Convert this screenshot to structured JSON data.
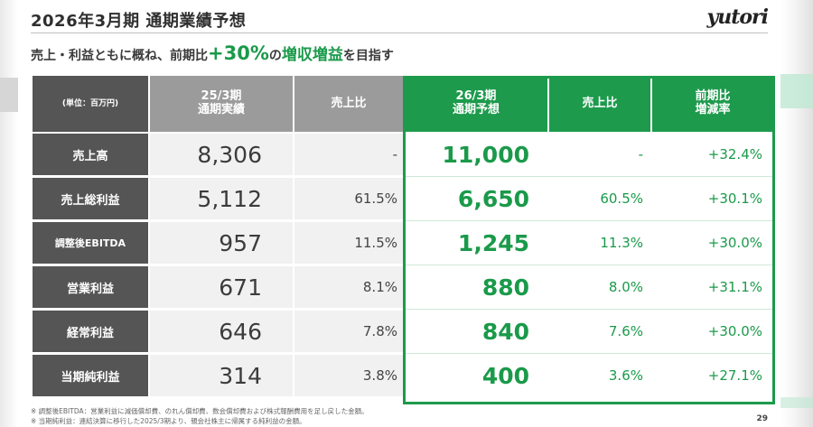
{
  "header": {
    "title": "2026年3月期 通期業績予想",
    "logo": "yutori"
  },
  "subtitle": {
    "pre": "売上・利益ともに概ね、前期比",
    "highlight": "+30%",
    "mid": "の",
    "highlight2": "増収増益",
    "post": "を目指す"
  },
  "table": {
    "headers": {
      "unit": "(単位：百万円)",
      "prev_line1": "25/3期",
      "prev_line2": "通期実績",
      "prev_ratio": "売上比",
      "fc_line1": "26/3期",
      "fc_line2": "通期予想",
      "fc_ratio": "売上比",
      "yoy_line1": "前期比",
      "yoy_line2": "増減率"
    },
    "rows": [
      {
        "label": "売上高",
        "prev": "8,306",
        "prev_ratio": "-",
        "fc": "11,000",
        "fc_ratio": "-",
        "yoy": "+32.4%"
      },
      {
        "label": "売上総利益",
        "prev": "5,112",
        "prev_ratio": "61.5%",
        "fc": "6,650",
        "fc_ratio": "60.5%",
        "yoy": "+30.1%"
      },
      {
        "label": "調整後EBITDA",
        "prev": "957",
        "prev_ratio": "11.5%",
        "fc": "1,245",
        "fc_ratio": "11.3%",
        "yoy": "+30.0%"
      },
      {
        "label": "営業利益",
        "prev": "671",
        "prev_ratio": "8.1%",
        "fc": "880",
        "fc_ratio": "8.0%",
        "yoy": "+31.1%"
      },
      {
        "label": "経常利益",
        "prev": "646",
        "prev_ratio": "7.8%",
        "fc": "840",
        "fc_ratio": "7.6%",
        "yoy": "+30.0%"
      },
      {
        "label": "当期純利益",
        "prev": "314",
        "prev_ratio": "3.8%",
        "fc": "400",
        "fc_ratio": "3.6%",
        "yoy": "+27.1%"
      }
    ]
  },
  "notes": [
    "※ 調整後EBITDA：営業利益に減価償却費、のれん償却費、数会償却費および株式報酬費用を足し戻した金額。",
    "※ 当期純利益：連結決算に移行した2025/3期より、親会社株主に帰属する純利益の金額。"
  ],
  "page_number": "29",
  "colors": {
    "accent_green": "#1d9a4c",
    "label_dark": "#555555",
    "prev_header_grey": "#9b9b9b"
  }
}
